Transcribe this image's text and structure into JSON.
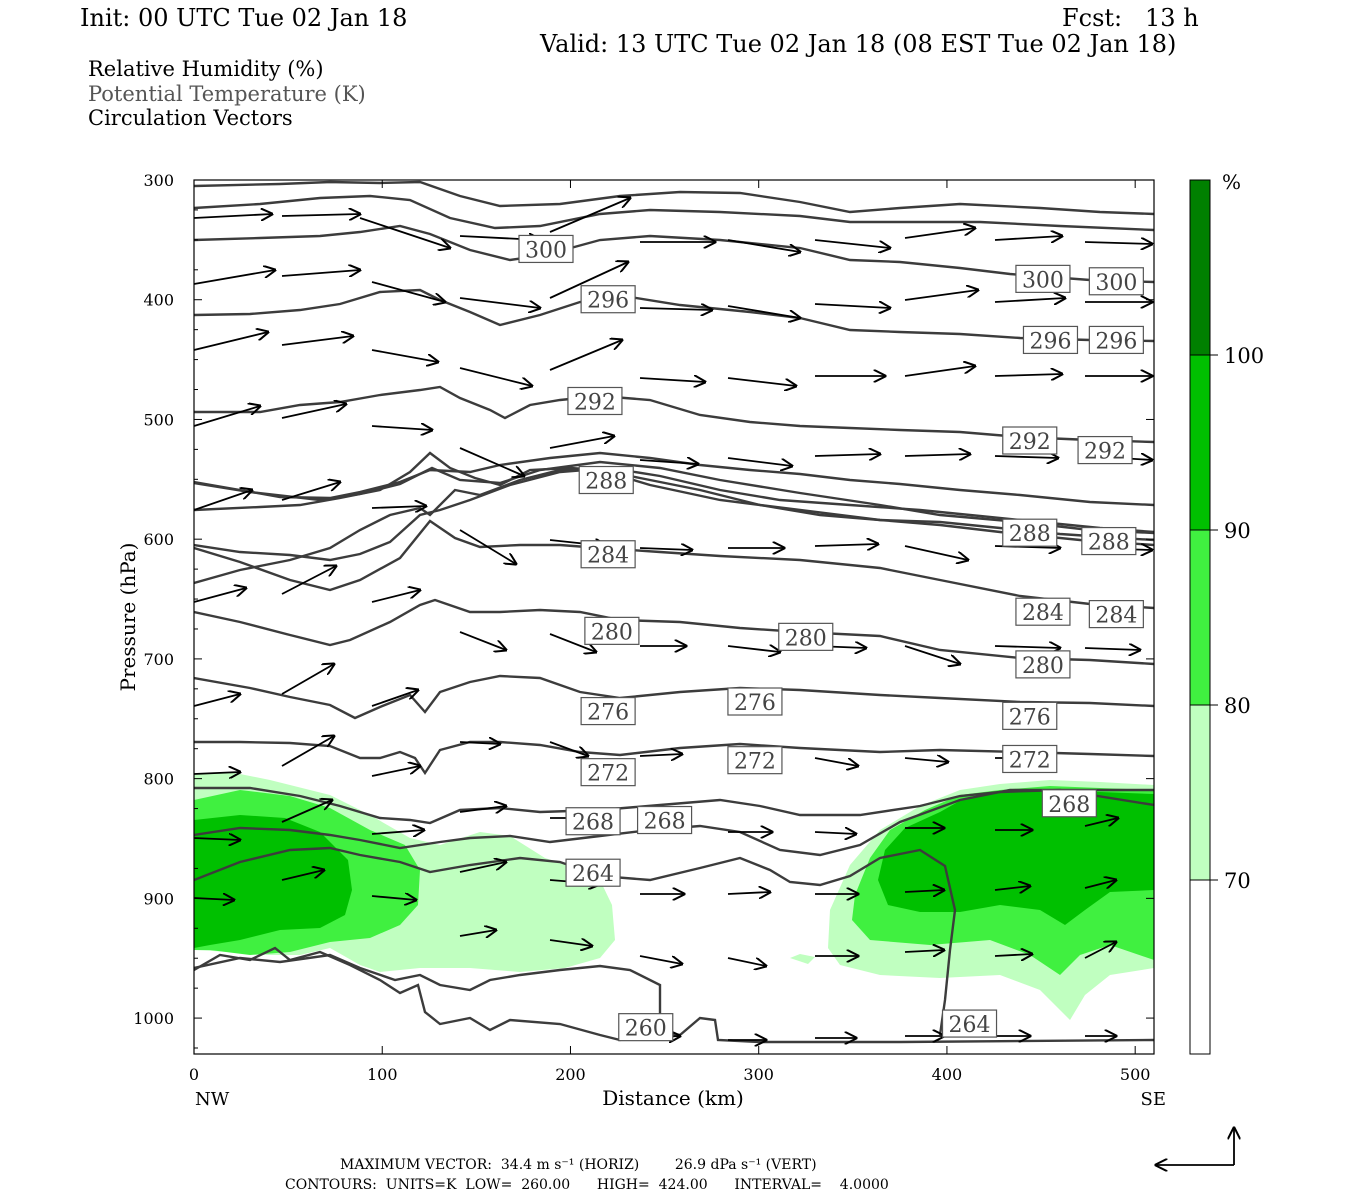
{
  "header": {
    "init": "Init: 00 UTC Tue 02 Jan 18",
    "fcst": "Fcst:   13 h",
    "valid": "Valid: 13 UTC Tue 02 Jan 18 (08 EST Tue 02 Jan 18)"
  },
  "legend": {
    "rh": "Relative Humidity (%)",
    "theta": "Potential Temperature (K)",
    "vectors": "Circulation Vectors"
  },
  "footer": {
    "max_vector": "MAXIMUM VECTOR:  34.4 m s⁻¹ (HORIZ)        26.9 dPa s⁻¹ (VERT)",
    "contours": "CONTOURS:  UNITS=K  LOW=  260.00      HIGH=  424.00      INTERVAL=    4.0000"
  },
  "colors": {
    "rh70": "#c0ffc0",
    "rh80": "#40f040",
    "rh90": "#00c000",
    "rh100": "#008000",
    "contour": "#3c3c3c"
  },
  "chart_data": {
    "type": "contour",
    "xlabel": "Distance (km)",
    "ylabel": "Pressure (hPa)",
    "xlim": [
      0,
      510
    ],
    "ylim": [
      300,
      1030
    ],
    "x_ticks": [
      "0",
      "100",
      "200",
      "300",
      "400",
      "500"
    ],
    "y_ticks": [
      "300",
      "400",
      "500",
      "600",
      "700",
      "800",
      "900",
      "1000"
    ],
    "x_end_labels": {
      "left": "NW",
      "right": "SE"
    },
    "colorbar": {
      "unit": "%",
      "levels": [
        "100",
        "90",
        "80",
        "70"
      ]
    },
    "theta_levels": [
      260,
      264,
      268,
      272,
      276,
      280,
      284,
      288,
      292,
      296,
      300
    ],
    "contour_labels": [
      {
        "text": "300",
        "x": 187,
        "p": 358
      },
      {
        "text": "300",
        "x": 451,
        "p": 383
      },
      {
        "text": "300",
        "x": 490,
        "p": 385
      },
      {
        "text": "296",
        "x": 220,
        "p": 400
      },
      {
        "text": "296",
        "x": 455,
        "p": 434
      },
      {
        "text": "296",
        "x": 490,
        "p": 434
      },
      {
        "text": "292",
        "x": 213,
        "p": 485
      },
      {
        "text": "292",
        "x": 444,
        "p": 518
      },
      {
        "text": "292",
        "x": 484,
        "p": 526
      },
      {
        "text": "288",
        "x": 219,
        "p": 551
      },
      {
        "text": "288",
        "x": 444,
        "p": 595
      },
      {
        "text": "288",
        "x": 486,
        "p": 602
      },
      {
        "text": "284",
        "x": 220,
        "p": 613
      },
      {
        "text": "284",
        "x": 451,
        "p": 661
      },
      {
        "text": "284",
        "x": 490,
        "p": 663
      },
      {
        "text": "280",
        "x": 222,
        "p": 677
      },
      {
        "text": "280",
        "x": 325,
        "p": 682
      },
      {
        "text": "280",
        "x": 451,
        "p": 705
      },
      {
        "text": "276",
        "x": 220,
        "p": 744
      },
      {
        "text": "276",
        "x": 298,
        "p": 736
      },
      {
        "text": "276",
        "x": 444,
        "p": 748
      },
      {
        "text": "272",
        "x": 220,
        "p": 795
      },
      {
        "text": "272",
        "x": 298,
        "p": 785
      },
      {
        "text": "272",
        "x": 444,
        "p": 784
      },
      {
        "text": "268",
        "x": 212,
        "p": 836
      },
      {
        "text": "268",
        "x": 250,
        "p": 835
      },
      {
        "text": "268",
        "x": 465,
        "p": 821
      },
      {
        "text": "264",
        "x": 212,
        "p": 879
      },
      {
        "text": "264",
        "x": 412,
        "p": 1005
      },
      {
        "text": "260",
        "x": 240,
        "p": 1008
      }
    ],
    "rh_regions_percent": [
      "70",
      "80",
      "90",
      "100"
    ],
    "max_vector": {
      "horiz_m_s": 34.4,
      "vert_dPa_s": 26.9
    },
    "contour_settings": {
      "units": "K",
      "low": 260.0,
      "high": 424.0,
      "interval": 4.0
    }
  }
}
